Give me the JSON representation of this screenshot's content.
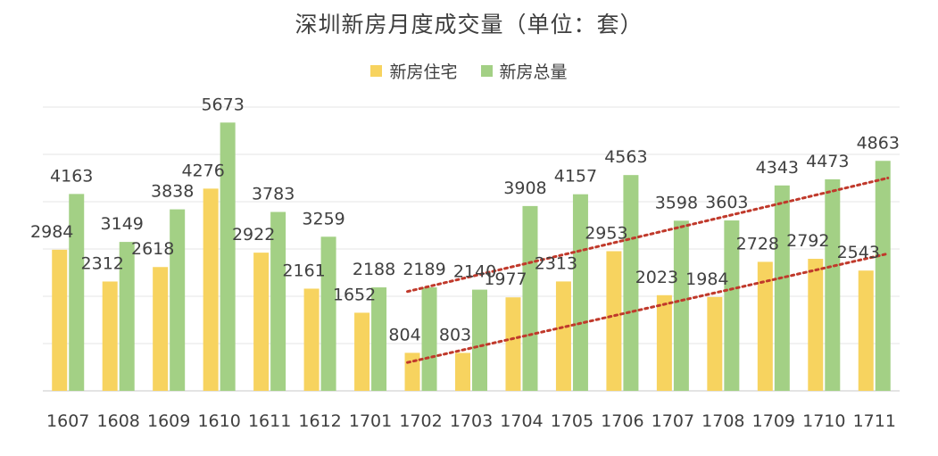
{
  "chart_data": {
    "type": "bar",
    "title": "深圳新房月度成交量（单位：套）",
    "categories": [
      "1607",
      "1608",
      "1609",
      "1610",
      "1611",
      "1612",
      "1701",
      "1702",
      "1703",
      "1704",
      "1705",
      "1706",
      "1707",
      "1708",
      "1709",
      "1710",
      "1711"
    ],
    "series": [
      {
        "name": "新房住宅",
        "color": "#f7d35f",
        "values": [
          2984,
          2312,
          2618,
          4276,
          2922,
          2161,
          1652,
          804,
          803,
          1977,
          2313,
          2953,
          2023,
          1984,
          2728,
          2792,
          2543
        ]
      },
      {
        "name": "新房总量",
        "color": "#a3d085",
        "values": [
          4163,
          3149,
          3838,
          5673,
          3783,
          3259,
          2188,
          2189,
          2140,
          3908,
          4157,
          4563,
          3598,
          3603,
          4343,
          4473,
          4863
        ]
      }
    ],
    "ylim": [
      0,
      6000
    ],
    "grid": true,
    "legend_position": "top-center",
    "annotations": [
      {
        "type": "dotted-trend-line",
        "color": "#c0392b",
        "from": [
          "1702",
          2100
        ],
        "to": [
          "1711",
          4500
        ]
      },
      {
        "type": "dotted-trend-line",
        "color": "#c0392b",
        "from": [
          "1702",
          600
        ],
        "to": [
          "1711",
          2900
        ]
      }
    ]
  }
}
